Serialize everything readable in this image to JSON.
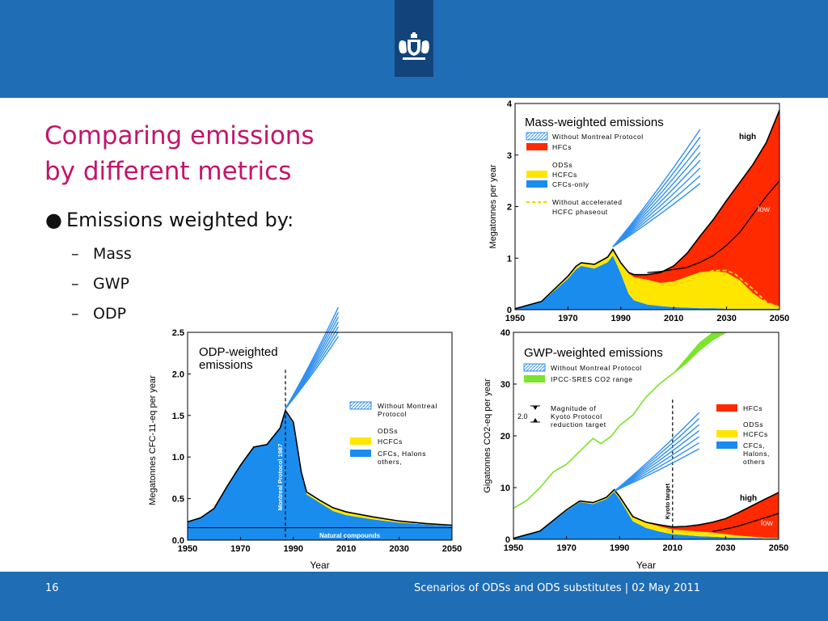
{
  "slide": {
    "title_line1": "Comparing emissions",
    "title_line2": "by different metrics",
    "bullet": "Emissions weighted by:",
    "bullet_glyph": "●",
    "dash_glyph": "–",
    "sub_bullets": [
      "Mass",
      "GWP",
      "ODP"
    ]
  },
  "footer": {
    "page_number": "16",
    "caption": "Scenarios of ODSs and ODS substitutes | 02 May 2011"
  },
  "colors": {
    "banner": "#1f6db4",
    "logo_box": "#12437a",
    "title": "#c4146b",
    "cfc_blue": "#1a8ced",
    "hcfc_yellow": "#ffe600",
    "hfc_red": "#ff2a00",
    "green": "#7ce42c",
    "hatch_blue": "#2f8ff0"
  },
  "chart_data": [
    {
      "id": "mass",
      "type": "area",
      "title": "Mass-weighted emissions",
      "xlabel": "",
      "ylabel": "Megatonnes per year",
      "xlim": [
        1950,
        2050
      ],
      "ylim": [
        0,
        4
      ],
      "xticks": [
        "1950",
        "1970",
        "1990",
        "2010",
        "2030",
        "2050"
      ],
      "yticks": [
        "0",
        "1",
        "2",
        "3",
        "4"
      ],
      "x": [
        1950,
        1960,
        1970,
        1973,
        1975,
        1980,
        1985,
        1987,
        1990,
        1993,
        1995,
        2000,
        2005,
        2010,
        2015,
        2020,
        2025,
        2030,
        2035,
        2040,
        2045,
        2050
      ],
      "series": [
        {
          "name": "CFCs-only",
          "values": [
            0.02,
            0.15,
            0.6,
            0.78,
            0.85,
            0.8,
            0.92,
            1.05,
            0.7,
            0.3,
            0.18,
            0.1,
            0.07,
            0.05,
            0.04,
            0.03,
            0.03,
            0.02,
            0.02,
            0.02,
            0.02,
            0.02
          ]
        },
        {
          "name": "HCFCs",
          "values": [
            0,
            0.01,
            0.05,
            0.06,
            0.06,
            0.08,
            0.1,
            0.12,
            0.2,
            0.4,
            0.45,
            0.48,
            0.45,
            0.5,
            0.6,
            0.7,
            0.72,
            0.7,
            0.55,
            0.3,
            0.12,
            0.05
          ]
        },
        {
          "name": "HFCs high",
          "values": [
            0,
            0,
            0,
            0,
            0,
            0,
            0,
            0,
            0.01,
            0.02,
            0.05,
            0.1,
            0.2,
            0.3,
            0.45,
            0.7,
            1.0,
            1.4,
            1.9,
            2.5,
            3.1,
            3.8
          ]
        }
      ],
      "low_line": [
        0.72,
        0.74,
        0.78,
        0.82,
        0.92,
        1.05,
        1.25,
        1.5,
        1.85,
        2.2,
        2.5
      ],
      "low_line_x": [
        2000,
        2005,
        2010,
        2015,
        2020,
        2025,
        2030,
        2035,
        2040,
        2045,
        2050
      ],
      "phaseout_line": [
        0.48,
        0.48,
        0.55,
        0.68,
        0.76,
        0.76,
        0.7,
        0.4,
        0.15,
        0.05
      ],
      "phaseout_line_x": [
        2005,
        2010,
        2015,
        2020,
        2025,
        2030,
        2033,
        2040,
        2045,
        2050
      ],
      "montreal_band": {
        "x": [
          1987,
          2020
        ],
        "lower_end": 2.45,
        "upper_end": 3.5
      },
      "legend": [
        {
          "label": "Without Montreal Protocol",
          "swatch": "hatch"
        },
        {
          "label": "HFCs",
          "swatch": "#ff2a00"
        },
        {
          "label": "ODSs",
          "swatch": "none"
        },
        {
          "label": "HCFCs",
          "swatch": "#ffe600"
        },
        {
          "label": "CFCs-only",
          "swatch": "#1a8ced"
        },
        {
          "label": "Without accelerated",
          "swatch": "dash"
        },
        {
          "label": "HCFC phaseout",
          "swatch": "none"
        }
      ],
      "annotations": [
        "high",
        "low"
      ]
    },
    {
      "id": "odp",
      "type": "area",
      "title": "ODP-weighted",
      "title2": "emissions",
      "xlabel": "Year",
      "ylabel": "Megatonnes CFC-11-eq per year",
      "xlim": [
        1950,
        2050
      ],
      "ylim": [
        0,
        2.5
      ],
      "xticks": [
        "1950",
        "1970",
        "1990",
        "2010",
        "2030",
        "2050"
      ],
      "yticks": [
        "0.0",
        "0.5",
        "1.0",
        "1.5",
        "2.0",
        "2.5"
      ],
      "x": [
        1950,
        1955,
        1960,
        1965,
        1970,
        1975,
        1980,
        1985,
        1987,
        1990,
        1993,
        1995,
        2000,
        2005,
        2010,
        2020,
        2030,
        2040,
        2050
      ],
      "series": [
        {
          "name": "CFCs, Halons others,",
          "values": [
            0.22,
            0.27,
            0.38,
            0.65,
            0.9,
            1.12,
            1.15,
            1.35,
            1.55,
            1.4,
            0.8,
            0.55,
            0.45,
            0.35,
            0.3,
            0.25,
            0.21,
            0.19,
            0.17
          ]
        },
        {
          "name": "HCFCs",
          "values": [
            0,
            0,
            0,
            0,
            0,
            0,
            0,
            0,
            0.01,
            0.02,
            0.02,
            0.03,
            0.03,
            0.04,
            0.04,
            0.03,
            0.02,
            0.01,
            0.01
          ]
        }
      ],
      "natural_level": 0.15,
      "montreal_year": 1987,
      "montreal_band": {
        "x": [
          1987,
          2007
        ],
        "lower_end": 2.45,
        "upper_end": 2.8
      },
      "legend": [
        {
          "label": "Without Montreal",
          "swatch": "hatch"
        },
        {
          "label": "Protocol",
          "swatch": "none"
        },
        {
          "label": "ODSs",
          "swatch": "none"
        },
        {
          "label": "HCFCs",
          "swatch": "#ffe600"
        },
        {
          "label": "CFCs, Halons",
          "swatch": "#1a8ced"
        },
        {
          "label": "others,",
          "swatch": "none"
        }
      ],
      "annotations": [
        "Natural compounds",
        "Montreal Protocol 1987"
      ]
    },
    {
      "id": "gwp",
      "type": "area",
      "title": "GWP-weighted emissions",
      "xlabel": "Year",
      "ylabel": "Gigatonnes CO2-eq per year",
      "xlim": [
        1950,
        2050
      ],
      "ylim": [
        0,
        40
      ],
      "xticks": [
        "1950",
        "1970",
        "1990",
        "2010",
        "2030",
        "2050"
      ],
      "yticks": [
        "0",
        "10",
        "20",
        "30",
        "40"
      ],
      "x": [
        1950,
        1960,
        1970,
        1975,
        1980,
        1985,
        1988,
        1990,
        1995,
        2000,
        2005,
        2010,
        2015,
        2020,
        2025,
        2030,
        2035,
        2040,
        2045,
        2050
      ],
      "series": [
        {
          "name": "CFCs, Halons, others",
          "values": [
            0.2,
            1.5,
            5.5,
            7.2,
            6.8,
            7.8,
            9.2,
            7.8,
            3.5,
            2.2,
            1.5,
            1.0,
            0.8,
            0.6,
            0.5,
            0.4,
            0.3,
            0.3,
            0.2,
            0.2
          ]
        },
        {
          "name": "HCFCs",
          "values": [
            0,
            0.1,
            0.2,
            0.2,
            0.3,
            0.3,
            0.4,
            0.5,
            0.9,
            1.0,
            1.0,
            0.9,
            0.9,
            0.9,
            0.8,
            0.6,
            0.4,
            0.2,
            0.1,
            0.05
          ]
        },
        {
          "name": "HFCs high",
          "values": [
            0,
            0,
            0,
            0,
            0,
            0,
            0,
            0,
            0,
            0.1,
            0.3,
            0.5,
            0.8,
            1.3,
            2.0,
            3.0,
            4.5,
            6.0,
            7.5,
            8.8
          ]
        }
      ],
      "low_line": [
        1.5,
        2.0,
        2.6,
        3.4,
        4.2,
        5.0
      ],
      "low_line_x": [
        2025,
        2030,
        2035,
        2040,
        2045,
        2050
      ],
      "co2_lower": [
        6.0,
        7.5,
        10.0,
        13.0,
        14.5,
        17.0,
        19.5,
        18.5,
        20.0,
        22.0,
        24.0,
        27.5,
        30.0,
        32.0,
        34.0,
        36.5,
        38.5,
        40.0
      ],
      "co2_upper_x": [
        2010,
        2015,
        2020,
        2025,
        2030,
        2035,
        2040
      ],
      "co2_upper": [
        32.0,
        35.0,
        38.0,
        40.0,
        40.0,
        40.0,
        40.0
      ],
      "co2_x": [
        1950,
        1955,
        1960,
        1965,
        1970,
        1975,
        1980,
        1983,
        1987,
        1990,
        1995,
        2000,
        2005,
        2010,
        2015,
        2020,
        2025,
        2030
      ],
      "kyoto_year": 2010,
      "montreal_band": {
        "x": [
          1988,
          2020
        ],
        "lower_end": 17.5,
        "upper_end": 24.5
      },
      "legend": [
        {
          "label": "Without Montreal Protocol",
          "swatch": "hatch"
        },
        {
          "label": "IPCC-SRES CO2 range",
          "swatch": "#7ce42c"
        },
        {
          "label": "Magnitude of",
          "swatch": "none"
        },
        {
          "label": "Kyoto Protocol",
          "swatch": "none"
        },
        {
          "label": "reduction target",
          "swatch": "none"
        },
        {
          "label": "HFCs",
          "swatch": "#ff2a00"
        },
        {
          "label": "ODSs",
          "swatch": "none"
        },
        {
          "label": "HCFCs",
          "swatch": "#ffe600"
        },
        {
          "label": "CFCs,",
          "swatch": "#1a8ced"
        },
        {
          "label": "Halons,",
          "swatch": "none"
        },
        {
          "label": "others",
          "swatch": "none"
        }
      ],
      "annotations": [
        "2.0",
        "Kyoto target",
        "high",
        "low"
      ]
    }
  ]
}
